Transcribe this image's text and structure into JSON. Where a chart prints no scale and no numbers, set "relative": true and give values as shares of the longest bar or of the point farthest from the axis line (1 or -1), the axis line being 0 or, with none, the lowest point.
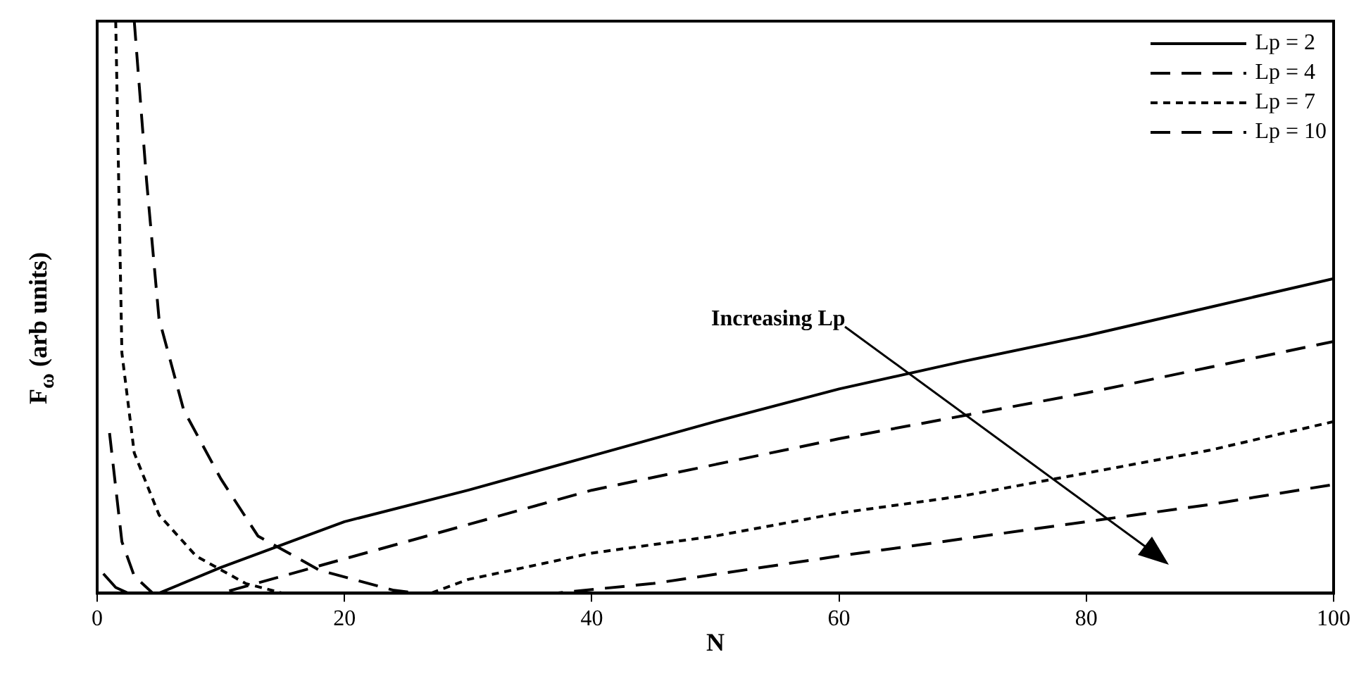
{
  "chart_data": {
    "type": "line",
    "xlabel": "N",
    "ylabel": "F$_{ω}$ (arb units)",
    "relative": true,
    "xlim": [
      0,
      100
    ],
    "xticks": [
      0,
      20,
      40,
      60,
      80,
      100
    ],
    "grid": false,
    "legend": "top right",
    "marker": "none",
    "annotations": [
      "Increasing Lp"
    ],
    "series": [
      {
        "name": "Lp = 2",
        "color": "#000000",
        "line_style": "solid",
        "x": [
          0.5,
          1.5,
          2.5,
          5,
          10,
          15,
          20,
          30,
          40,
          50,
          60,
          70,
          80,
          90,
          100
        ],
        "values": [
          0.034,
          0.01,
          0,
          0,
          0.045,
          0.085,
          0.125,
          0.18,
          0.24,
          0.3,
          0.357,
          0.405,
          0.45,
          0.5,
          0.55
        ]
      },
      {
        "name": "Lp = 4",
        "color": "#000000",
        "line_style": "dashed",
        "x": [
          1,
          2,
          3,
          4.5,
          10,
          15,
          20,
          30,
          40,
          50,
          60,
          70,
          80,
          90,
          100
        ],
        "values": [
          0.28,
          0.09,
          0.03,
          0,
          0,
          0.03,
          0.06,
          0.12,
          0.18,
          0.225,
          0.27,
          0.31,
          0.35,
          0.395,
          0.44
        ]
      },
      {
        "name": "Lp = 7",
        "color": "#000000",
        "line_style": "dotted",
        "x": [
          1.5,
          2,
          3,
          5,
          8,
          12,
          15,
          27,
          30,
          40,
          50,
          60,
          70,
          80,
          90,
          100
        ],
        "values": [
          1,
          0.42,
          0.245,
          0.137,
          0.065,
          0.017,
          0,
          0,
          0.024,
          0.07,
          0.1,
          0.14,
          0.17,
          0.21,
          0.25,
          0.3
        ]
      },
      {
        "name": "Lp = 10",
        "color": "#000000",
        "line_style": "dashed",
        "x": [
          3,
          4,
          5,
          7,
          10,
          13,
          18,
          24,
          26,
          37,
          45,
          60,
          70,
          80,
          90,
          100
        ],
        "values": [
          1,
          0.72,
          0.48,
          0.32,
          0.2,
          0.1,
          0.04,
          0.005,
          0,
          0,
          0.017,
          0.065,
          0.095,
          0.125,
          0.155,
          0.19
        ]
      }
    ]
  }
}
